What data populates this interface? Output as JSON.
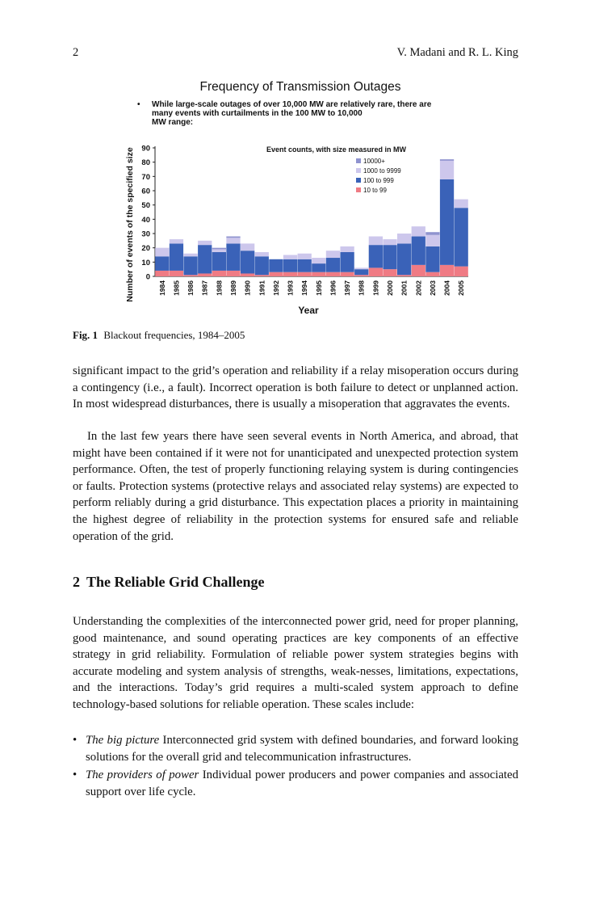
{
  "header": {
    "page_number": "2",
    "authors": "V. Madani and R. L. King"
  },
  "chart_data": {
    "type": "bar",
    "stacked": true,
    "title": "Frequency of Transmission Outages",
    "subtitle_bullet": "While large-scale outages of over 10,000 MW are relatively rare, there are many events with curtailments in the 100 MW to 10,000 MW range:",
    "legend_title": "Event counts, with size measured in MW",
    "xlabel": "Year",
    "ylabel": "Number of events of the specified size",
    "ylim": [
      0,
      90
    ],
    "yticks": [
      0,
      10,
      20,
      30,
      40,
      50,
      60,
      70,
      80,
      90
    ],
    "categories": [
      "1984",
      "1985",
      "1986",
      "1987",
      "1988",
      "1989",
      "1990",
      "1991",
      "1992",
      "1993",
      "1994",
      "1995",
      "1996",
      "1997",
      "1998",
      "1999",
      "2000",
      "2001",
      "2002",
      "2003",
      "2004",
      "2005"
    ],
    "series": [
      {
        "name": "10 to 99",
        "color": "#ef7b84",
        "values": [
          4,
          4,
          1,
          2,
          4,
          4,
          2,
          1,
          3,
          3,
          3,
          3,
          3,
          3,
          1,
          6,
          5,
          1,
          8,
          3,
          8,
          7
        ]
      },
      {
        "name": "100 to 999",
        "color": "#3a62b8",
        "values": [
          10,
          19,
          13,
          20,
          13,
          19,
          16,
          13,
          9,
          9,
          9,
          6,
          10,
          14,
          4,
          16,
          17,
          22,
          20,
          18,
          60,
          41
        ]
      },
      {
        "name": "1000 to 9999",
        "color": "#cdc7ec",
        "values": [
          6,
          3,
          2,
          3,
          2,
          4,
          5,
          3,
          0,
          3,
          4,
          4,
          5,
          4,
          1,
          6,
          4,
          7,
          7,
          8,
          13,
          6
        ]
      },
      {
        "name": "10000+",
        "color": "#8f93cf",
        "values": [
          0,
          0,
          0,
          0,
          1,
          1,
          0,
          0,
          0,
          0,
          0,
          0,
          0,
          0,
          0,
          0,
          0,
          0,
          0,
          2,
          1,
          0
        ]
      }
    ],
    "legend_placement": "top-right"
  },
  "caption": {
    "label": "Fig. 1",
    "text": "Blackout frequencies, 1984–2005"
  },
  "paragraphs": {
    "p1": "significant impact to the grid’s operation and reliability if a relay misoperation occurs during a contingency (i.e., a fault). Incorrect operation is both failure to detect or unplanned action. In most widespread disturbances, there is usually a misoperation that aggravates the events.",
    "p2": "In the last few years there have seen several events in North America, and abroad, that might have been contained if it were not for unanticipated and unexpected protection system performance. Often, the test of properly functioning relaying system is during contingencies or faults. Protection systems (protective relays and associated relay systems) are expected to perform reliably during a grid disturbance. This expectation places a priority in maintaining the highest degree of reliability in the protection systems for ensured safe and reliable operation of the grid.",
    "p3": "Understanding the complexities of the interconnected power grid, need for proper planning, good maintenance, and sound operating practices are key components of an effective strategy in grid reliability. Formulation of reliable power system strategies begins with accurate modeling and system analysis of strengths, weak-nesses, limitations, expectations, and the interactions. Today’s grid requires a multi-scaled system approach to define technology-based solutions for reliable operation. These scales include:"
  },
  "section": {
    "number": "2",
    "title": "The Reliable Grid Challenge"
  },
  "bullets": [
    {
      "marker": "•",
      "term": "The big picture",
      "text": " Interconnected grid system with defined boundaries, and forward looking solutions for the overall grid and telecommunication infrastructures."
    },
    {
      "marker": "•",
      "term": "The providers of power",
      "text": " Individual power producers and power companies and associated support over life cycle."
    }
  ]
}
